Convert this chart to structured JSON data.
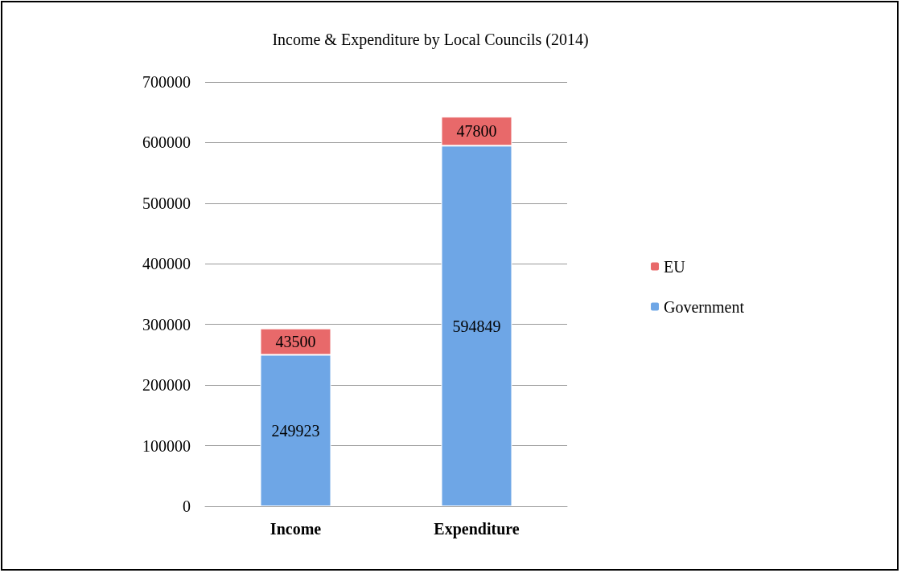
{
  "chart_data": {
    "type": "bar",
    "title": "Income & Expenditure by Local Councils (2014)",
    "categories": [
      "Income",
      "Expenditure"
    ],
    "series": [
      {
        "name": "Government",
        "color": "#6ea6e6",
        "values": [
          249923,
          594849
        ]
      },
      {
        "name": "EU",
        "color": "#e8696a",
        "values": [
          43500,
          47800
        ]
      }
    ],
    "stacked": true,
    "ylim": [
      0,
      700000
    ],
    "yticks": [
      0,
      100000,
      200000,
      300000,
      400000,
      500000,
      600000,
      700000
    ],
    "grid": "y",
    "legend": "right",
    "data_labels": true
  }
}
